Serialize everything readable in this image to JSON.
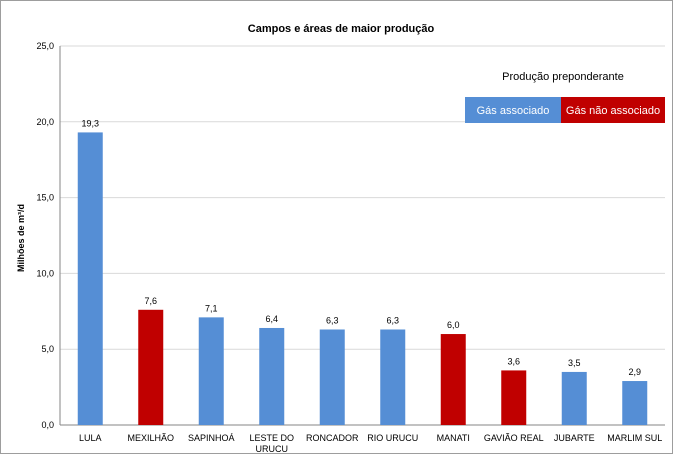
{
  "chart_data": {
    "type": "bar",
    "title": "Campos e áreas de maior produção",
    "ylabel": "Milhões de m³/d",
    "ylim": [
      0,
      25
    ],
    "yticks": [
      "0,0",
      "5,0",
      "10,0",
      "15,0",
      "20,0",
      "25,0"
    ],
    "ytick_values": [
      0,
      5,
      10,
      15,
      20,
      25
    ],
    "grid": true,
    "categories": [
      [
        "LULA"
      ],
      [
        "MEXILHÃO"
      ],
      [
        "SAPINHOÁ"
      ],
      [
        "LESTE DO",
        "URUCU"
      ],
      [
        "RONCADOR"
      ],
      [
        "RIO URUCU"
      ],
      [
        "MANATI"
      ],
      [
        "GAVIÃO REAL"
      ],
      [
        "JUBARTE"
      ],
      [
        "MARLIM SUL"
      ]
    ],
    "values": [
      19.3,
      7.6,
      7.1,
      6.4,
      6.3,
      6.3,
      6.0,
      3.6,
      3.5,
      2.9
    ],
    "value_labels": [
      "19,3",
      "7,6",
      "7,1",
      "6,4",
      "6,3",
      "6,3",
      "6,0",
      "3,6",
      "3,5",
      "2,9"
    ],
    "series_of_bar": [
      0,
      1,
      0,
      0,
      0,
      0,
      1,
      1,
      0,
      0
    ],
    "legend": {
      "title": "Produção preponderante",
      "placement": "top-right",
      "items": [
        {
          "label": "Gás associado",
          "color": "#558ed5"
        },
        {
          "label": "Gás não associado",
          "color": "#c00000"
        }
      ]
    }
  }
}
